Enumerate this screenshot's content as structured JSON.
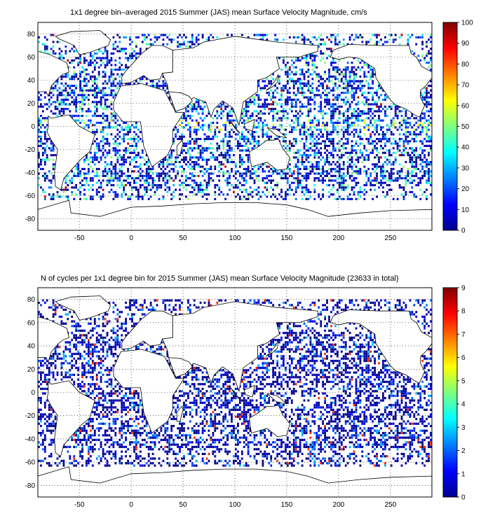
{
  "panels": [
    {
      "title": "1x1 degree bin–averaged 2015 Summer (JAS) mean Surface Velocity Magnitude, cm/s",
      "colorbar": {
        "min": 0,
        "max": 100,
        "ticks": [
          "0",
          "10",
          "20",
          "30",
          "40",
          "50",
          "60",
          "70",
          "80",
          "90",
          "100"
        ]
      },
      "field": "speed"
    },
    {
      "title": "N of cycles per 1x1 degree bin for 2015 Summer (JAS) mean Surface Velocity Magnitude (23633 in total)",
      "colorbar": {
        "min": 0,
        "max": 9,
        "ticks": [
          "0",
          "1",
          "2",
          "3",
          "4",
          "5",
          "6",
          "7",
          "8",
          "9"
        ]
      },
      "field": "cycles"
    }
  ],
  "axes": {
    "x_ticks": [
      "-50",
      "0",
      "50",
      "100",
      "150",
      "200",
      "250"
    ],
    "y_ticks": [
      "80",
      "60",
      "40",
      "20",
      "0",
      "-20",
      "-40",
      "-60",
      "-80"
    ],
    "xlim": [
      -90,
      290
    ],
    "ylim": [
      -90,
      90
    ],
    "grid": "dotted"
  },
  "colormap": "jet"
}
